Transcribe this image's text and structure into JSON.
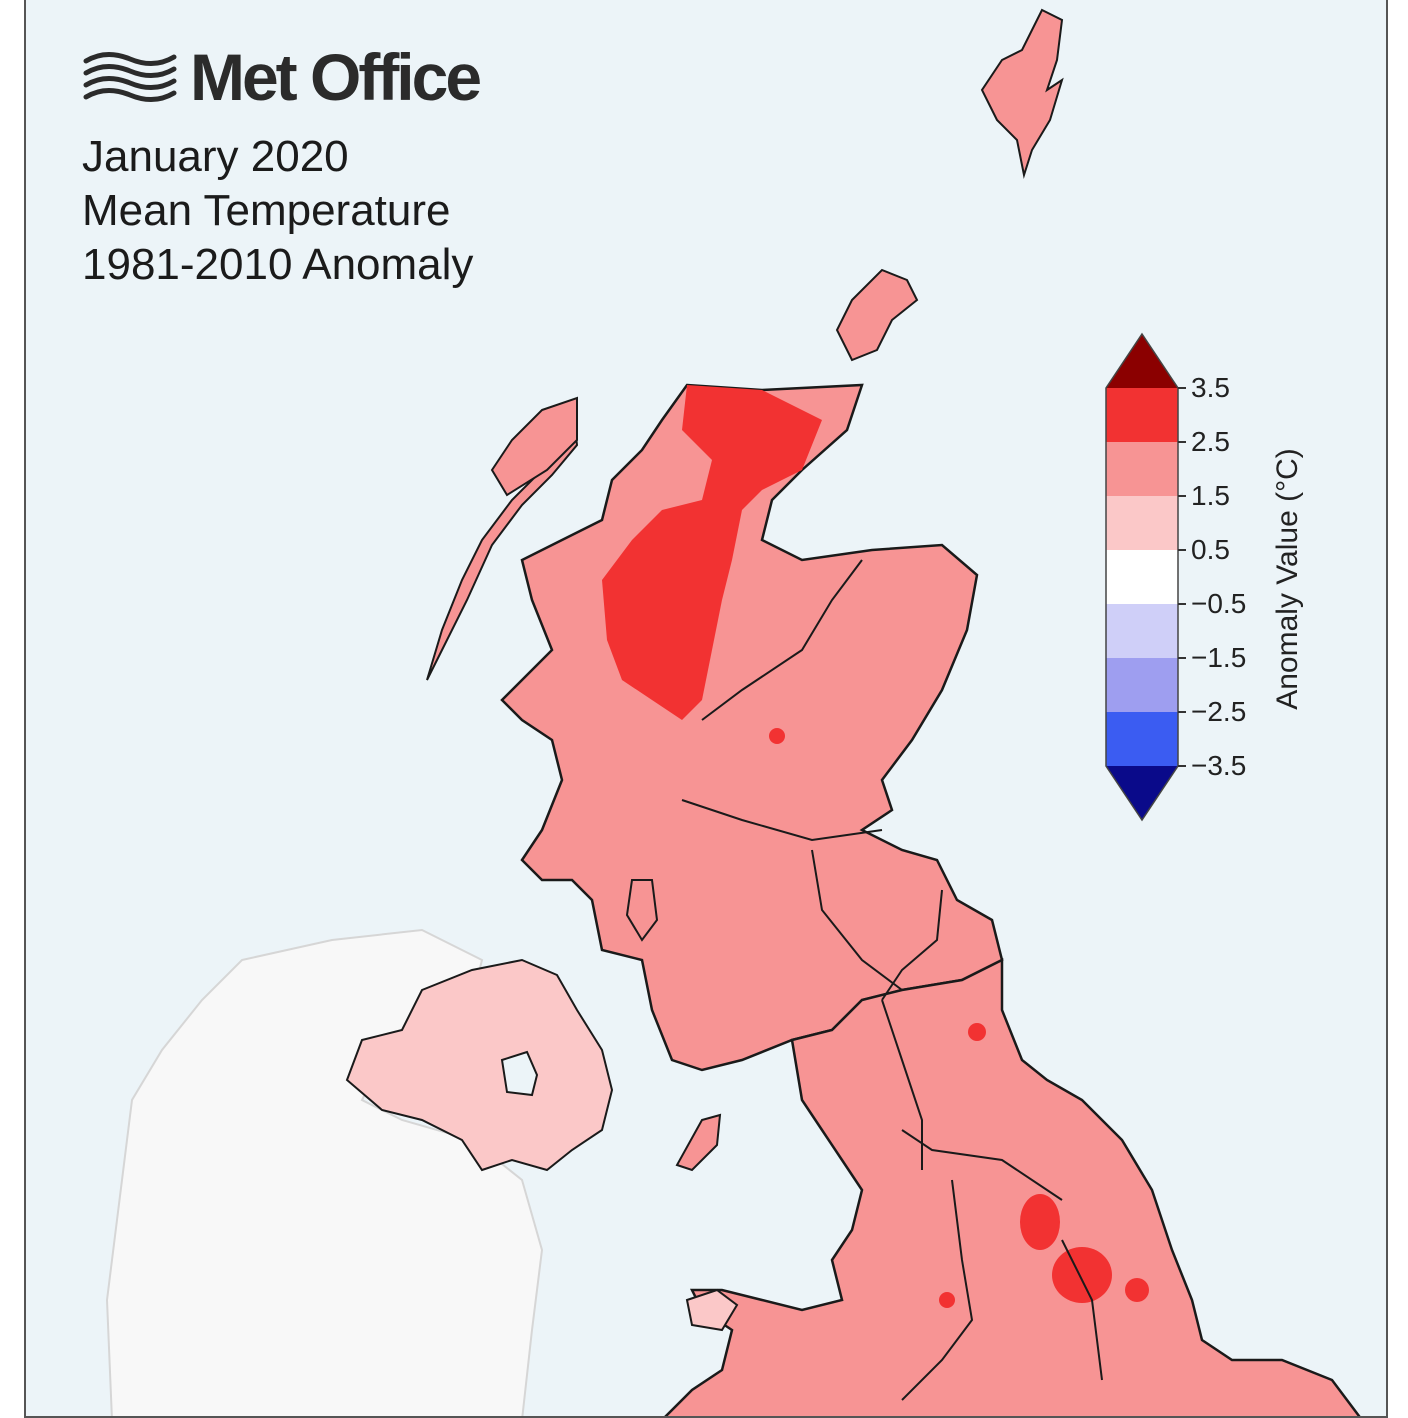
{
  "brand": {
    "name": "Met Office",
    "icon": "met-office-wave-logo-icon"
  },
  "title": {
    "line1": "January 2020",
    "line2": "Mean Temperature",
    "line3": "1981-2010 Anomaly"
  },
  "legend": {
    "label": "Anomaly Value (°C)",
    "ticks": [
      "3.5",
      "2.5",
      "1.5",
      "0.5",
      "−0.5",
      "−1.5",
      "−2.5",
      "−3.5"
    ],
    "bands": [
      {
        "range": "> 3.5",
        "color": "#8b0000"
      },
      {
        "range": "2.5 to 3.5",
        "color": "#f23232"
      },
      {
        "range": "1.5 to 2.5",
        "color": "#f79494"
      },
      {
        "range": "0.5 to 1.5",
        "color": "#fbc8c8"
      },
      {
        "range": "-0.5 to 0.5",
        "color": "#ffffff"
      },
      {
        "range": "-1.5 to -0.5",
        "color": "#cfcff8"
      },
      {
        "range": "-2.5 to -1.5",
        "color": "#9e9ef0"
      },
      {
        "range": "-3.5 to -2.5",
        "color": "#3b5cf2"
      },
      {
        "range": "< -3.5",
        "color": "#0a0a8a"
      }
    ]
  },
  "colors": {
    "sea": "#ecf4f8",
    "ireland": "#f8f8f8",
    "anomaly_1_5_to_2_5": "#f79494",
    "anomaly_2_5_to_3_5": "#f23232",
    "anomaly_0_5_to_1_5": "#fbc8c8",
    "outline": "#1a1a1a"
  }
}
